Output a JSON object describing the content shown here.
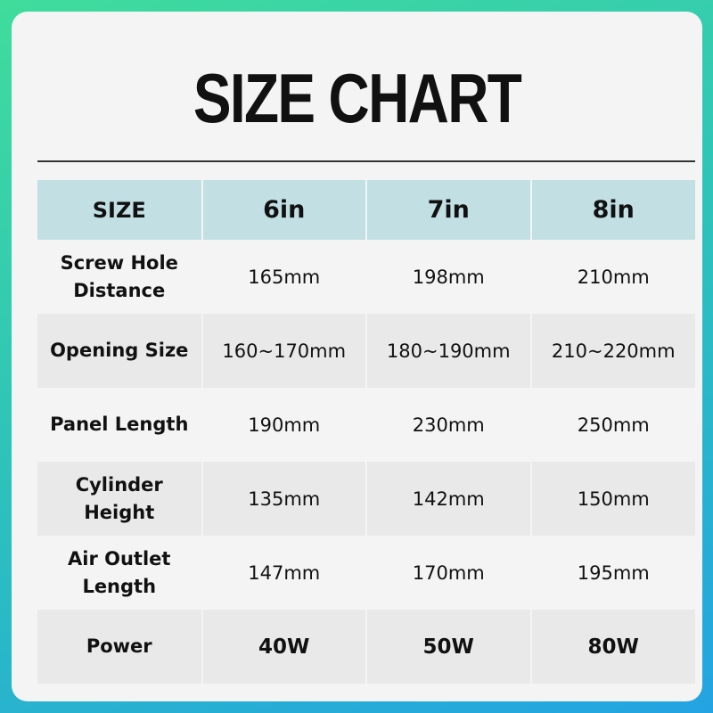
{
  "title": "SIZE CHART",
  "table": {
    "headers": [
      "SIZE",
      "6in",
      "7in",
      "8in"
    ],
    "rows": [
      {
        "label_lines": [
          "Screw Hole",
          "Distance"
        ],
        "values": [
          "165mm",
          "198mm",
          "210mm"
        ]
      },
      {
        "label_lines": [
          "Opening Size"
        ],
        "values": [
          "160~170mm",
          "180~190mm",
          "210~220mm"
        ]
      },
      {
        "label_lines": [
          "Panel Length"
        ],
        "values": [
          "190mm",
          "230mm",
          "250mm"
        ]
      },
      {
        "label_lines": [
          "Cylinder",
          "Height"
        ],
        "values": [
          "135mm",
          "142mm",
          "150mm"
        ]
      },
      {
        "label_lines": [
          "Air Outlet",
          "Length"
        ],
        "values": [
          "147mm",
          "170mm",
          "195mm"
        ]
      },
      {
        "label_lines": [
          "Power"
        ],
        "values": [
          "40W",
          "50W",
          "80W"
        ]
      }
    ]
  },
  "colors": {
    "header_bg": "#c2dfe4",
    "row_alt_bg": "#e9e9e9",
    "card_bg": "#f4f4f4",
    "bg_gradient": [
      "#3fdc9c",
      "#23a3e2"
    ]
  }
}
